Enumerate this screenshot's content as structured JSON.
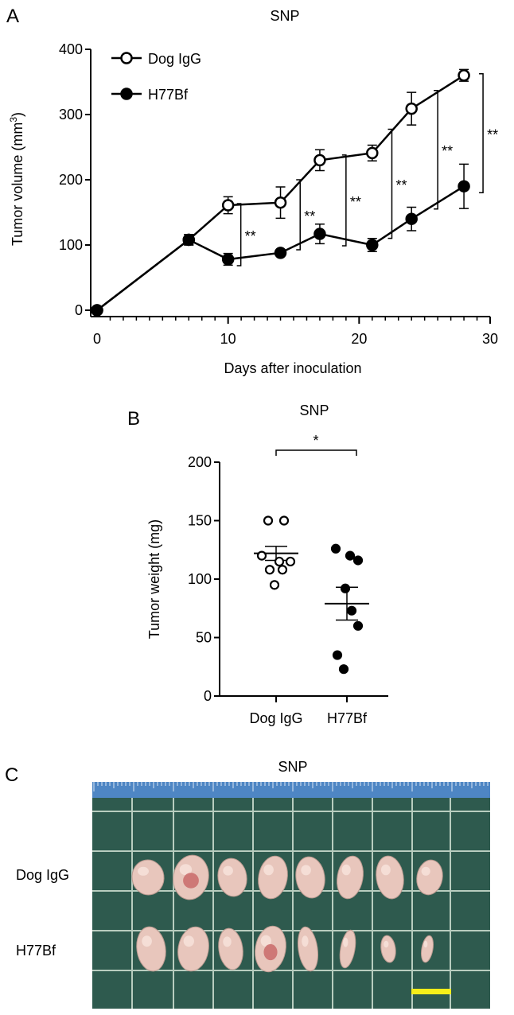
{
  "panels": {
    "a": {
      "letter": "A",
      "title": "SNP",
      "xlabel": "Days after inoculation",
      "ylabel_main": "Tumor volume (mm",
      "ylabel_sup": "3",
      "ylabel_end": ")",
      "legend": [
        {
          "label": "Dog IgG",
          "marker": "open-circle"
        },
        {
          "label": "H77Bf",
          "marker": "filled-circle"
        }
      ]
    },
    "b": {
      "letter": "B",
      "title": "SNP",
      "ylabel": "Tumor weight (mg)",
      "sig": "*"
    },
    "c": {
      "letter": "C",
      "title": "SNP",
      "row_labels": [
        "Dog IgG",
        "H77Bf"
      ],
      "photo_colors": {
        "board": "#2e5a4e",
        "grid": "#b8cdbf",
        "ruler": "#4e86c4",
        "tissue": "#e8c6bc",
        "tissue_dark": "#c96a6a",
        "scale_bar": "#f6ee1a"
      }
    }
  },
  "chart_data": [
    {
      "type": "line",
      "title": "SNP",
      "xlabel": "Days after inoculation",
      "ylabel": "Tumor volume (mm3)",
      "xlim": [
        0,
        30
      ],
      "ylim": [
        0,
        400
      ],
      "xticks": [
        0,
        10,
        20,
        30
      ],
      "yticks": [
        0,
        100,
        200,
        300,
        400
      ],
      "legend_position": "top-left",
      "series": [
        {
          "name": "Dog IgG",
          "marker": "open-circle",
          "x": [
            0,
            7,
            10,
            14,
            17,
            21,
            24,
            28
          ],
          "y": [
            0,
            108,
            161,
            165,
            230,
            241,
            309,
            360
          ],
          "err": [
            0,
            8,
            13,
            24,
            16,
            12,
            25,
            9
          ]
        },
        {
          "name": "H77Bf",
          "marker": "filled-circle",
          "x": [
            0,
            7,
            10,
            14,
            17,
            21,
            24,
            28
          ],
          "y": [
            0,
            108,
            78,
            88,
            117,
            100,
            140,
            190
          ],
          "err": [
            0,
            8,
            9,
            4,
            15,
            10,
            18,
            34
          ]
        }
      ],
      "significance": [
        {
          "x_from": 10,
          "x_to": 10,
          "label": "**"
        },
        {
          "x_from": 14,
          "x_to": 17,
          "label": "**"
        },
        {
          "x_from": 17,
          "x_to": 21,
          "label": "**"
        },
        {
          "x_from": 21,
          "x_to": 24,
          "label": "**"
        },
        {
          "x_from": 24,
          "x_to": 28,
          "label": "**"
        },
        {
          "x_from": 28,
          "x_to": 28,
          "label": "**"
        }
      ]
    },
    {
      "type": "scatter",
      "title": "SNP",
      "ylabel": "Tumor weight (mg)",
      "ylim": [
        0,
        200
      ],
      "yticks": [
        0,
        50,
        100,
        150,
        200
      ],
      "categories": [
        "Dog IgG",
        "H77Bf"
      ],
      "groups": [
        {
          "name": "Dog IgG",
          "marker": "open-circle",
          "points": [
            150,
            150,
            120,
            115,
            115,
            108,
            108,
            95
          ],
          "mean": 122,
          "sem": 6
        },
        {
          "name": "H77Bf",
          "marker": "filled-circle",
          "points": [
            126,
            120,
            116,
            92,
            73,
            60,
            35,
            23
          ],
          "mean": 79,
          "sem": 14
        }
      ],
      "significance": {
        "from": "Dog IgG",
        "to": "H77Bf",
        "label": "*"
      }
    }
  ]
}
